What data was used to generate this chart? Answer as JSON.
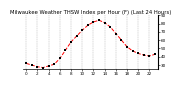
{
  "title": "Milwaukee Weather THSW Index per Hour (F) (Last 24 Hours)",
  "hours": [
    0,
    1,
    2,
    3,
    4,
    5,
    6,
    7,
    8,
    9,
    10,
    11,
    12,
    13,
    14,
    15,
    16,
    17,
    18,
    19,
    20,
    21,
    22,
    23
  ],
  "values": [
    32,
    30,
    28,
    27,
    29,
    31,
    38,
    48,
    58,
    65,
    72,
    78,
    82,
    84,
    81,
    76,
    68,
    60,
    52,
    47,
    44,
    42,
    41,
    43
  ],
  "line_color": "#ff0000",
  "marker_color": "#000000",
  "bg_color": "#ffffff",
  "grid_color": "#888888",
  "ylim": [
    25,
    90
  ],
  "yticks": [
    30,
    40,
    50,
    60,
    70,
    80,
    90
  ],
  "title_color": "#000000",
  "title_fontsize": 3.8,
  "tick_fontsize": 3.0,
  "linewidth": 0.7,
  "markersize": 1.8
}
